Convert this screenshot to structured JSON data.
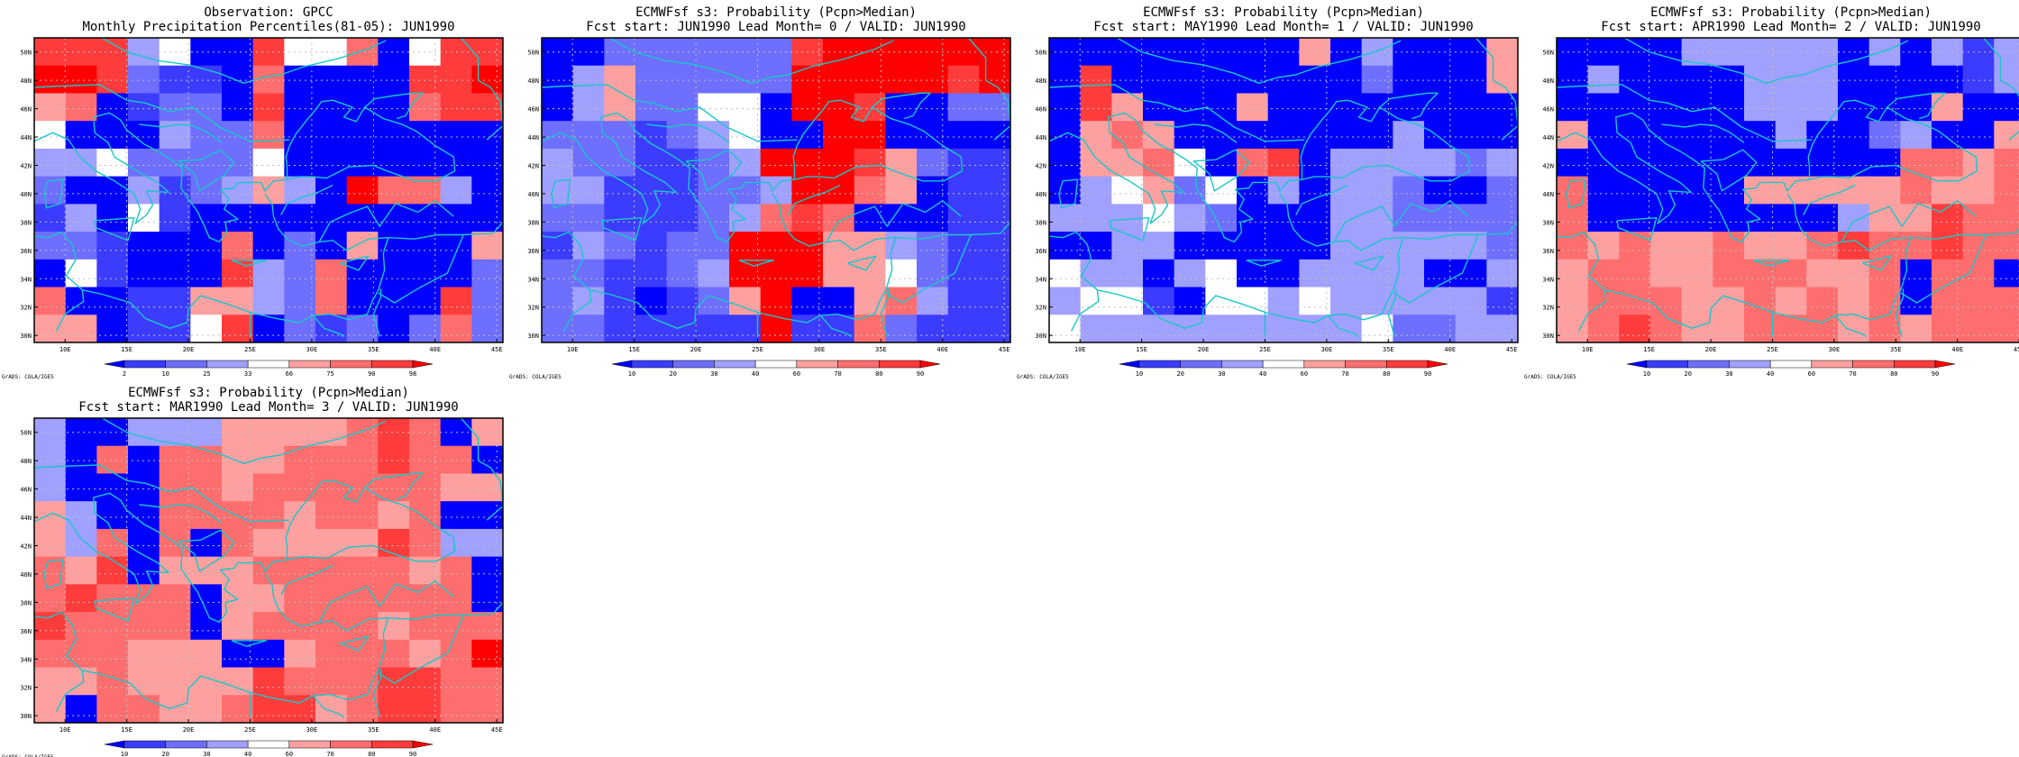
{
  "figure": {
    "credit": "GrADS: COLA/IGES",
    "lat_ticks": [
      "50N",
      "48N",
      "46N",
      "44N",
      "42N",
      "40N",
      "38N",
      "36N",
      "34N",
      "32N",
      "30N"
    ],
    "lon_ticks": [
      "10E",
      "15E",
      "20E",
      "25E",
      "30E",
      "35E",
      "40E",
      "45E"
    ],
    "coast_color": "#19c7c7",
    "grid_color": "#bfbfbf"
  },
  "panels": [
    {
      "title_line1": "Observation: GPCC",
      "title_line2": "Monthly Precipitation Percentiles(81-05): JUN1990",
      "colorbar_labels": [
        "2",
        "10",
        "25",
        "33",
        "66",
        "75",
        "90",
        "98"
      ],
      "colorbar_colors": [
        "#0000ff",
        "#3c3cff",
        "#6e6eff",
        "#a0a0ff",
        "#ffffff",
        "#ffa0a0",
        "#ff6e6e",
        "#ff3c3c",
        "#ff0000"
      ],
      "grid": [
        [
          7,
          7,
          7,
          3,
          4,
          0,
          0,
          7,
          4,
          4,
          6,
          0,
          4,
          7,
          7
        ],
        [
          8,
          8,
          7,
          2,
          1,
          1,
          0,
          6,
          0,
          0,
          0,
          0,
          7,
          7,
          8
        ],
        [
          5,
          6,
          0,
          1,
          2,
          2,
          0,
          7,
          0,
          0,
          0,
          0,
          6,
          7,
          7
        ],
        [
          4,
          0,
          0,
          0,
          3,
          2,
          2,
          6,
          0,
          0,
          0,
          0,
          0,
          0,
          0
        ],
        [
          3,
          3,
          4,
          2,
          2,
          2,
          2,
          4,
          0,
          0,
          0,
          0,
          0,
          0,
          0
        ],
        [
          2,
          0,
          0,
          3,
          1,
          2,
          3,
          5,
          3,
          0,
          8,
          6,
          6,
          3,
          0
        ],
        [
          1,
          3,
          0,
          4,
          1,
          0,
          0,
          0,
          0,
          0,
          0,
          0,
          0,
          0,
          0
        ],
        [
          2,
          2,
          1,
          0,
          0,
          0,
          6,
          0,
          2,
          0,
          5,
          0,
          0,
          0,
          5
        ],
        [
          0,
          4,
          1,
          0,
          0,
          0,
          7,
          3,
          2,
          6,
          0,
          0,
          0,
          0,
          2
        ],
        [
          6,
          0,
          0,
          1,
          1,
          5,
          5,
          3,
          2,
          6,
          0,
          0,
          0,
          7,
          2
        ],
        [
          5,
          5,
          0,
          1,
          1,
          4,
          7,
          0,
          2,
          1,
          2,
          0,
          2,
          6,
          2
        ]
      ]
    },
    {
      "title_line1": "ECMWFsf s3: Probability (Pcpn>Median)",
      "title_line2": "Fcst start: JUN1990  Lead Month= 0 / VALID: JUN1990",
      "colorbar_labels": [
        "10",
        "20",
        "30",
        "40",
        "60",
        "70",
        "80",
        "90"
      ],
      "colorbar_colors": [
        "#0000ff",
        "#3c3cff",
        "#6e6eff",
        "#a0a0ff",
        "#ffffff",
        "#ffa0a0",
        "#ff6e6e",
        "#ff3c3c",
        "#ff0000"
      ],
      "grid": [
        [
          0,
          0,
          2,
          2,
          2,
          2,
          2,
          2,
          7,
          8,
          8,
          8,
          8,
          8,
          8
        ],
        [
          0,
          3,
          5,
          2,
          2,
          2,
          2,
          2,
          8,
          8,
          8,
          8,
          8,
          7,
          8
        ],
        [
          0,
          3,
          5,
          2,
          2,
          4,
          4,
          0,
          8,
          8,
          7,
          0,
          0,
          2,
          2
        ],
        [
          2,
          2,
          2,
          1,
          2,
          3,
          4,
          0,
          0,
          8,
          8,
          0,
          0,
          0,
          0
        ],
        [
          3,
          2,
          2,
          1,
          1,
          2,
          3,
          8,
          8,
          8,
          7,
          5,
          2,
          1,
          1
        ],
        [
          3,
          3,
          1,
          1,
          1,
          2,
          2,
          3,
          8,
          8,
          6,
          5,
          0,
          1,
          1
        ],
        [
          2,
          2,
          1,
          1,
          1,
          2,
          3,
          6,
          7,
          6,
          0,
          0,
          0,
          1,
          1
        ],
        [
          1,
          3,
          2,
          1,
          2,
          2,
          8,
          8,
          8,
          5,
          5,
          3,
          2,
          1,
          1
        ],
        [
          2,
          2,
          1,
          1,
          2,
          3,
          8,
          8,
          8,
          5,
          5,
          4,
          2,
          1,
          1
        ],
        [
          2,
          3,
          1,
          0,
          1,
          2,
          5,
          8,
          0,
          0,
          5,
          6,
          3,
          1,
          1
        ],
        [
          2,
          2,
          1,
          1,
          1,
          1,
          1,
          8,
          1,
          1,
          6,
          2,
          1,
          1,
          1
        ]
      ]
    },
    {
      "title_line1": "ECMWFsf s3: Probability (Pcpn>Median)",
      "title_line2": "Fcst start: MAY1990  Lead Month= 1 / VALID: JUN1990",
      "colorbar_labels": [
        "10",
        "20",
        "30",
        "40",
        "60",
        "70",
        "80",
        "90"
      ],
      "colorbar_colors": [
        "#0000ff",
        "#3c3cff",
        "#6e6eff",
        "#a0a0ff",
        "#ffffff",
        "#ffa0a0",
        "#ff6e6e",
        "#ff3c3c",
        "#ff0000"
      ],
      "grid": [
        [
          0,
          0,
          0,
          0,
          0,
          0,
          0,
          0,
          5,
          0,
          3,
          0,
          0,
          0,
          5
        ],
        [
          0,
          7,
          0,
          0,
          0,
          0,
          0,
          0,
          0,
          0,
          2,
          0,
          0,
          0,
          5
        ],
        [
          0,
          7,
          5,
          0,
          0,
          0,
          5,
          0,
          0,
          0,
          0,
          0,
          0,
          0,
          0
        ],
        [
          0,
          5,
          6,
          5,
          0,
          0,
          0,
          0,
          0,
          0,
          0,
          3,
          0,
          0,
          0
        ],
        [
          0,
          5,
          5,
          6,
          4,
          0,
          6,
          7,
          0,
          3,
          3,
          3,
          3,
          2,
          3
        ],
        [
          0,
          3,
          4,
          5,
          2,
          4,
          0,
          3,
          0,
          3,
          3,
          2,
          0,
          0,
          2
        ],
        [
          3,
          3,
          3,
          4,
          3,
          2,
          0,
          0,
          0,
          3,
          3,
          2,
          2,
          2,
          2
        ],
        [
          0,
          0,
          3,
          3,
          0,
          0,
          0,
          0,
          0,
          3,
          3,
          3,
          3,
          3,
          2
        ],
        [
          4,
          3,
          3,
          0,
          3,
          4,
          0,
          0,
          3,
          3,
          3,
          3,
          0,
          0,
          3
        ],
        [
          3,
          4,
          4,
          1,
          0,
          4,
          4,
          3,
          4,
          3,
          3,
          3,
          3,
          3,
          1
        ],
        [
          4,
          3,
          3,
          3,
          3,
          3,
          3,
          3,
          3,
          3,
          4,
          2,
          2,
          3,
          3
        ]
      ]
    },
    {
      "title_line1": "ECMWFsf s3: Probability (Pcpn>Median)",
      "title_line2": "Fcst start: APR1990  Lead Month= 2 / VALID: JUN1990",
      "colorbar_labels": [
        "10",
        "20",
        "30",
        "40",
        "60",
        "70",
        "80",
        "90"
      ],
      "colorbar_colors": [
        "#0000ff",
        "#3c3cff",
        "#6e6eff",
        "#a0a0ff",
        "#ffffff",
        "#ffa0a0",
        "#ff6e6e",
        "#ff3c3c",
        "#ff0000"
      ],
      "grid": [
        [
          0,
          0,
          0,
          0,
          3,
          3,
          3,
          3,
          3,
          0,
          3,
          0,
          3,
          1,
          3
        ],
        [
          0,
          3,
          0,
          0,
          0,
          0,
          3,
          3,
          3,
          0,
          0,
          0,
          0,
          1,
          3
        ],
        [
          0,
          0,
          0,
          0,
          0,
          0,
          3,
          3,
          3,
          0,
          0,
          0,
          5,
          0,
          0
        ],
        [
          5,
          0,
          0,
          0,
          0,
          0,
          0,
          3,
          0,
          0,
          2,
          3,
          0,
          0,
          5
        ],
        [
          0,
          0,
          0,
          0,
          0,
          0,
          0,
          0,
          0,
          0,
          0,
          6,
          6,
          5,
          6
        ],
        [
          6,
          0,
          0,
          0,
          0,
          0,
          5,
          5,
          5,
          5,
          5,
          6,
          5,
          5,
          6
        ],
        [
          6,
          0,
          0,
          0,
          0,
          0,
          0,
          0,
          0,
          3,
          5,
          5,
          7,
          6,
          6
        ],
        [
          6,
          5,
          6,
          5,
          5,
          6,
          5,
          5,
          6,
          7,
          6,
          6,
          7,
          6,
          6
        ],
        [
          5,
          6,
          6,
          5,
          5,
          6,
          6,
          6,
          5,
          5,
          6,
          0,
          6,
          6,
          0
        ],
        [
          5,
          6,
          6,
          6,
          5,
          5,
          6,
          5,
          6,
          5,
          6,
          0,
          6,
          6,
          6
        ],
        [
          5,
          6,
          7,
          6,
          5,
          5,
          6,
          6,
          6,
          5,
          6,
          5,
          6,
          6,
          6
        ]
      ]
    },
    {
      "title_line1": "ECMWFsf s3: Probability (Pcpn>Median)",
      "title_line2": "Fcst start: MAR1990  Lead Month= 3 / VALID: JUN1990",
      "colorbar_labels": [
        "10",
        "20",
        "30",
        "40",
        "60",
        "70",
        "80",
        "90"
      ],
      "colorbar_colors": [
        "#0000ff",
        "#3c3cff",
        "#6e6eff",
        "#a0a0ff",
        "#ffffff",
        "#ffa0a0",
        "#ff6e6e",
        "#ff3c3c",
        "#ff0000"
      ],
      "grid": [
        [
          3,
          0,
          0,
          3,
          3,
          3,
          5,
          5,
          5,
          5,
          6,
          7,
          6,
          0,
          5
        ],
        [
          3,
          0,
          6,
          0,
          6,
          6,
          5,
          5,
          6,
          6,
          6,
          7,
          6,
          6,
          0
        ],
        [
          3,
          0,
          0,
          0,
          6,
          6,
          5,
          6,
          6,
          6,
          6,
          6,
          6,
          5,
          5
        ],
        [
          5,
          3,
          0,
          0,
          6,
          6,
          6,
          6,
          5,
          6,
          6,
          5,
          6,
          0,
          0
        ],
        [
          5,
          3,
          6,
          0,
          6,
          0,
          6,
          5,
          5,
          5,
          5,
          7,
          6,
          3,
          3
        ],
        [
          6,
          5,
          7,
          0,
          5,
          5,
          5,
          6,
          6,
          6,
          6,
          6,
          5,
          6,
          0
        ],
        [
          6,
          7,
          6,
          6,
          6,
          0,
          5,
          5,
          6,
          6,
          6,
          6,
          6,
          6,
          0
        ],
        [
          7,
          6,
          6,
          6,
          6,
          0,
          5,
          6,
          6,
          6,
          6,
          5,
          6,
          6,
          6
        ],
        [
          6,
          6,
          6,
          5,
          5,
          5,
          0,
          0,
          5,
          6,
          6,
          6,
          5,
          6,
          8
        ],
        [
          5,
          5,
          6,
          5,
          5,
          5,
          5,
          7,
          6,
          6,
          6,
          7,
          7,
          6,
          6
        ],
        [
          5,
          0,
          6,
          6,
          5,
          5,
          6,
          7,
          7,
          5,
          6,
          7,
          7,
          6,
          6
        ]
      ]
    }
  ]
}
